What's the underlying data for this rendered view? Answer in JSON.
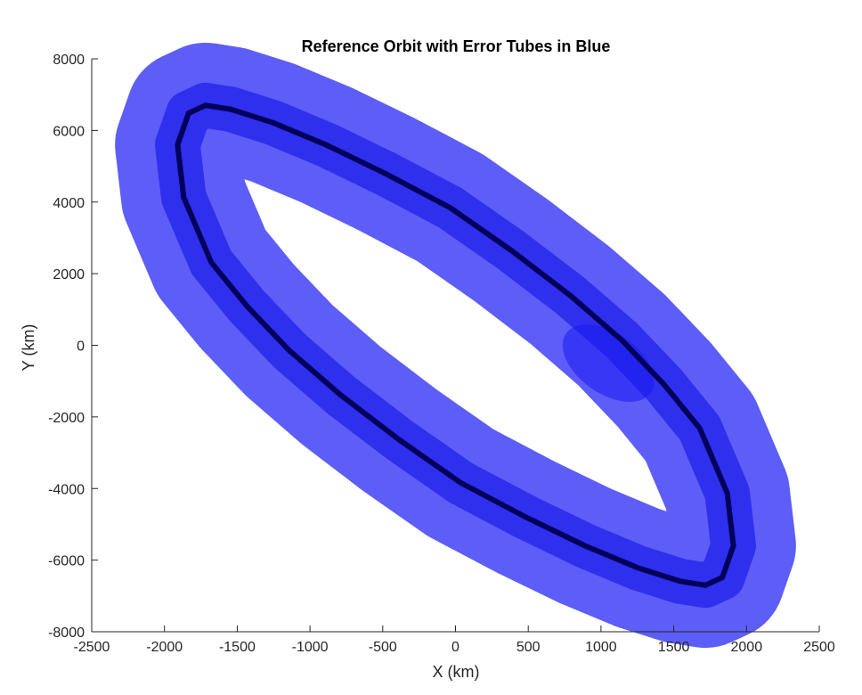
{
  "chart_data": {
    "type": "line",
    "title": "Reference Orbit with Error Tubes in Blue",
    "xlabel": "X (km)",
    "ylabel": "Y (km)",
    "xlim": [
      -2500,
      2500
    ],
    "ylim": [
      -8000,
      8000
    ],
    "xticks": [
      -2500,
      -2000,
      -1500,
      -1000,
      -500,
      0,
      500,
      1000,
      1500,
      2000,
      2500
    ],
    "yticks": [
      -8000,
      -6000,
      -4000,
      -2000,
      0,
      2000,
      4000,
      6000,
      8000
    ],
    "grid": false,
    "series": [
      {
        "role": "reference-orbit",
        "color": "#00005a",
        "x": [
          -1718,
          -1546,
          -1254,
          -890,
          -478,
          -37,
          383,
          786,
          1142,
          1434,
          1678,
          1868,
          1910,
          1834,
          1718,
          1546,
          1254,
          890,
          478,
          37,
          -383,
          -786,
          -1142,
          -1434,
          -1678,
          -1868,
          -1910,
          -1834,
          -1718
        ],
        "y": [
          6700,
          6591,
          6217,
          5600,
          4787,
          3842,
          2650,
          1400,
          148,
          -1097,
          -2313,
          -4127,
          -5600,
          -6482,
          -6700,
          -6591,
          -6217,
          -5600,
          -4787,
          -3842,
          -2650,
          -1400,
          -148,
          1097,
          2313,
          4127,
          5600,
          6482,
          6700
        ]
      },
      {
        "role": "error-tube",
        "color": "#1e1ef5",
        "tube_outer_radius_km": 430,
        "tube_inner_radius_km": 155,
        "x": [
          -1718,
          -1546,
          -1254,
          -890,
          -478,
          -37,
          383,
          786,
          1142,
          1434,
          1678,
          1868,
          1910,
          1834,
          1718,
          1546,
          1254,
          890,
          478,
          37,
          -383,
          -786,
          -1142,
          -1434,
          -1678,
          -1868,
          -1910,
          -1834,
          -1718
        ],
        "y": [
          6700,
          6591,
          6217,
          5600,
          4787,
          3842,
          2650,
          1400,
          148,
          -1097,
          -2313,
          -4127,
          -5600,
          -6482,
          -6700,
          -6591,
          -6217,
          -5600,
          -4787,
          -3842,
          -2650,
          -1400,
          -148,
          1097,
          2313,
          4127,
          5600,
          6482,
          6700
        ]
      }
    ],
    "annotations": [
      {
        "kind": "tube-bulge",
        "x": 1050,
        "y": -500,
        "color": "#1a1af0"
      }
    ]
  }
}
